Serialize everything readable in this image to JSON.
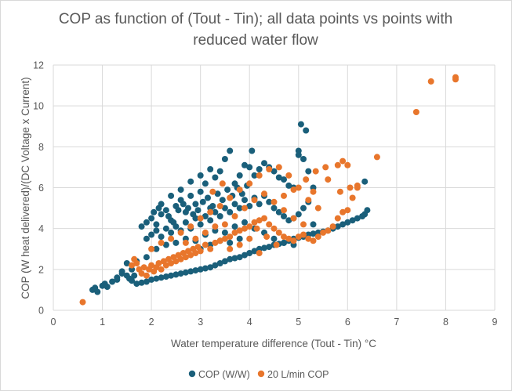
{
  "chart_data": {
    "type": "scatter",
    "title_lines": [
      "COP as function of (Tout - Tin); all data points vs points with",
      "reduced water flow"
    ],
    "xlabel": "Water temperature difference (Tout - Tin) °C",
    "ylabel": "COP (W heat delivered)/(DC Voltage x Current)",
    "xlim": [
      0,
      9
    ],
    "ylim": [
      0,
      12
    ],
    "x_ticks": [
      "0",
      "1",
      "2",
      "3",
      "4",
      "5",
      "6",
      "7",
      "8",
      "9"
    ],
    "y_ticks": [
      "0",
      "2",
      "4",
      "6",
      "8",
      "10",
      "12"
    ],
    "grid": true,
    "legend_position": "bottom",
    "series": [
      {
        "name": "COP (W/W)",
        "color": "#1a5f7a",
        "points": [
          [
            0.8,
            1.0
          ],
          [
            0.85,
            1.1
          ],
          [
            0.9,
            0.9
          ],
          [
            1.0,
            1.2
          ],
          [
            1.05,
            1.3
          ],
          [
            1.1,
            1.15
          ],
          [
            1.2,
            1.4
          ],
          [
            1.3,
            1.6
          ],
          [
            1.4,
            1.8
          ],
          [
            1.5,
            1.7
          ],
          [
            1.6,
            1.45
          ],
          [
            1.7,
            1.3
          ],
          [
            1.8,
            1.35
          ],
          [
            1.9,
            1.4
          ],
          [
            2.0,
            1.5
          ],
          [
            2.1,
            1.55
          ],
          [
            2.2,
            1.6
          ],
          [
            2.3,
            1.65
          ],
          [
            2.4,
            1.7
          ],
          [
            2.5,
            1.75
          ],
          [
            2.6,
            1.8
          ],
          [
            2.7,
            1.85
          ],
          [
            2.8,
            1.9
          ],
          [
            2.9,
            1.95
          ],
          [
            3.0,
            2.0
          ],
          [
            3.1,
            2.05
          ],
          [
            3.2,
            2.1
          ],
          [
            3.3,
            2.2
          ],
          [
            3.4,
            2.3
          ],
          [
            3.5,
            2.4
          ],
          [
            3.6,
            2.5
          ],
          [
            3.7,
            2.55
          ],
          [
            3.8,
            2.6
          ],
          [
            3.9,
            2.7
          ],
          [
            4.0,
            2.8
          ],
          [
            4.1,
            2.9
          ],
          [
            4.2,
            3.0
          ],
          [
            4.3,
            3.05
          ],
          [
            4.4,
            3.1
          ],
          [
            4.5,
            3.2
          ],
          [
            4.6,
            3.25
          ],
          [
            4.7,
            3.3
          ],
          [
            4.8,
            3.4
          ],
          [
            4.9,
            3.5
          ],
          [
            5.0,
            3.55
          ],
          [
            5.1,
            3.6
          ],
          [
            5.2,
            3.7
          ],
          [
            5.3,
            3.75
          ],
          [
            5.4,
            3.8
          ],
          [
            5.5,
            3.85
          ],
          [
            5.6,
            3.9
          ],
          [
            5.7,
            4.0
          ],
          [
            5.8,
            4.1
          ],
          [
            5.9,
            4.2
          ],
          [
            6.0,
            4.3
          ],
          [
            6.1,
            4.4
          ],
          [
            6.2,
            4.5
          ],
          [
            6.3,
            4.6
          ],
          [
            6.35,
            4.7
          ],
          [
            6.4,
            4.9
          ],
          [
            6.35,
            6.3
          ],
          [
            1.8,
            4.1
          ],
          [
            1.9,
            4.3
          ],
          [
            2.0,
            4.5
          ],
          [
            2.1,
            4.2
          ],
          [
            2.2,
            4.7
          ],
          [
            2.3,
            4.9
          ],
          [
            2.4,
            4.4
          ],
          [
            2.5,
            5.1
          ],
          [
            2.6,
            5.4
          ],
          [
            2.7,
            4.8
          ],
          [
            2.8,
            5.6
          ],
          [
            2.9,
            5.2
          ],
          [
            3.0,
            5.8
          ],
          [
            3.1,
            6.2
          ],
          [
            3.2,
            5.0
          ],
          [
            3.3,
            6.5
          ],
          [
            3.4,
            6.8
          ],
          [
            3.5,
            7.4
          ],
          [
            3.6,
            7.8
          ],
          [
            3.7,
            6.2
          ],
          [
            3.8,
            6.6
          ],
          [
            3.9,
            7.1
          ],
          [
            4.0,
            7.0
          ],
          [
            4.1,
            6.6
          ],
          [
            4.2,
            6.9
          ],
          [
            4.3,
            7.2
          ],
          [
            4.4,
            7.0
          ],
          [
            4.5,
            6.8
          ],
          [
            4.6,
            6.5
          ],
          [
            4.7,
            6.4
          ],
          [
            4.8,
            6.1
          ],
          [
            4.9,
            6.0
          ],
          [
            5.0,
            7.6
          ],
          [
            5.1,
            7.4
          ],
          [
            5.05,
            9.1
          ],
          [
            5.15,
            8.8
          ],
          [
            5.0,
            7.8
          ],
          [
            5.2,
            6.8
          ],
          [
            5.3,
            6.0
          ],
          [
            4.05,
            7.8
          ],
          [
            1.9,
            3.5
          ],
          [
            2.0,
            3.7
          ],
          [
            2.1,
            3.9
          ],
          [
            2.2,
            3.6
          ],
          [
            2.3,
            4.0
          ],
          [
            2.4,
            3.8
          ],
          [
            2.5,
            4.1
          ],
          [
            2.6,
            3.9
          ],
          [
            2.7,
            4.3
          ],
          [
            2.8,
            4.0
          ],
          [
            2.9,
            4.5
          ],
          [
            3.0,
            4.2
          ],
          [
            3.1,
            4.6
          ],
          [
            3.2,
            4.4
          ],
          [
            3.3,
            4.8
          ],
          [
            3.4,
            4.6
          ],
          [
            3.5,
            5.0
          ],
          [
            3.6,
            4.8
          ],
          [
            3.7,
            5.2
          ],
          [
            3.8,
            5.0
          ],
          [
            3.9,
            5.4
          ],
          [
            4.0,
            5.1
          ],
          [
            4.1,
            5.5
          ],
          [
            4.2,
            5.2
          ],
          [
            4.3,
            5.6
          ],
          [
            4.4,
            5.3
          ],
          [
            4.5,
            5.0
          ],
          [
            4.6,
            4.8
          ],
          [
            4.7,
            4.6
          ],
          [
            4.8,
            4.4
          ],
          [
            4.9,
            4.5
          ],
          [
            5.0,
            4.7
          ],
          [
            5.1,
            5.0
          ],
          [
            5.2,
            5.3
          ],
          [
            5.3,
            4.2
          ],
          [
            2.2,
            5.2
          ],
          [
            2.4,
            5.6
          ],
          [
            2.6,
            5.9
          ],
          [
            2.8,
            6.3
          ],
          [
            3.0,
            6.6
          ],
          [
            3.2,
            6.9
          ],
          [
            2.5,
            3.3
          ],
          [
            2.7,
            3.5
          ],
          [
            2.9,
            3.4
          ],
          [
            3.1,
            3.7
          ],
          [
            3.3,
            3.9
          ],
          [
            3.5,
            3.8
          ],
          [
            3.7,
            4.1
          ],
          [
            3.9,
            4.3
          ],
          [
            4.1,
            4.0
          ],
          [
            4.3,
            3.8
          ],
          [
            4.5,
            3.5
          ],
          [
            4.7,
            3.3
          ],
          [
            4.9,
            3.2
          ],
          [
            3.0,
            3.0
          ],
          [
            3.2,
            3.2
          ],
          [
            3.4,
            3.4
          ],
          [
            3.6,
            3.3
          ],
          [
            3.8,
            3.5
          ],
          [
            2.3,
            3.2
          ],
          [
            2.1,
            3.0
          ],
          [
            1.9,
            2.6
          ],
          [
            1.7,
            2.4
          ],
          [
            1.5,
            2.3
          ],
          [
            1.6,
            2.0
          ],
          [
            1.4,
            1.9
          ],
          [
            1.3,
            1.5
          ],
          [
            1.55,
            1.55
          ],
          [
            1.65,
            1.7
          ],
          [
            2.05,
            4.8
          ],
          [
            2.15,
            5.0
          ],
          [
            2.35,
            4.6
          ],
          [
            2.45,
            4.3
          ],
          [
            2.55,
            4.9
          ],
          [
            2.65,
            5.2
          ],
          [
            2.75,
            5.0
          ],
          [
            2.85,
            4.7
          ],
          [
            2.95,
            4.9
          ],
          [
            3.05,
            5.3
          ],
          [
            3.15,
            5.5
          ],
          [
            3.25,
            5.1
          ],
          [
            3.35,
            5.7
          ],
          [
            3.45,
            5.4
          ],
          [
            3.55,
            5.9
          ],
          [
            3.65,
            5.6
          ],
          [
            3.75,
            6.0
          ],
          [
            3.85,
            5.7
          ],
          [
            3.95,
            6.1
          ]
        ]
      },
      {
        "name": "20 L/min COP",
        "color": "#e8762c",
        "points": [
          [
            0.6,
            0.4
          ],
          [
            1.6,
            2.2
          ],
          [
            1.65,
            2.5
          ],
          [
            1.7,
            2.3
          ],
          [
            1.75,
            2.0
          ],
          [
            1.8,
            1.8
          ],
          [
            1.85,
            2.1
          ],
          [
            1.9,
            1.7
          ],
          [
            1.95,
            2.0
          ],
          [
            2.0,
            2.2
          ],
          [
            2.05,
            1.9
          ],
          [
            2.1,
            2.1
          ],
          [
            2.15,
            2.3
          ],
          [
            2.2,
            2.0
          ],
          [
            2.25,
            2.4
          ],
          [
            2.3,
            2.2
          ],
          [
            2.35,
            2.5
          ],
          [
            2.4,
            2.3
          ],
          [
            2.45,
            2.6
          ],
          [
            2.5,
            2.4
          ],
          [
            2.55,
            2.7
          ],
          [
            2.6,
            2.5
          ],
          [
            2.65,
            2.8
          ],
          [
            2.7,
            2.6
          ],
          [
            2.75,
            2.9
          ],
          [
            2.8,
            2.7
          ],
          [
            2.85,
            3.0
          ],
          [
            2.9,
            2.8
          ],
          [
            2.95,
            3.1
          ],
          [
            3.0,
            2.9
          ],
          [
            3.1,
            3.2
          ],
          [
            3.2,
            3.0
          ],
          [
            3.3,
            3.3
          ],
          [
            3.4,
            3.4
          ],
          [
            3.5,
            3.5
          ],
          [
            3.6,
            3.6
          ],
          [
            3.7,
            3.8
          ],
          [
            3.8,
            3.9
          ],
          [
            3.9,
            4.0
          ],
          [
            4.0,
            4.1
          ],
          [
            4.1,
            4.3
          ],
          [
            4.2,
            4.4
          ],
          [
            4.3,
            4.5
          ],
          [
            4.4,
            4.2
          ],
          [
            4.5,
            4.0
          ],
          [
            4.6,
            3.8
          ],
          [
            4.7,
            3.6
          ],
          [
            4.8,
            3.5
          ],
          [
            4.9,
            3.4
          ],
          [
            5.0,
            3.6
          ],
          [
            5.1,
            3.7
          ],
          [
            5.2,
            3.5
          ],
          [
            5.3,
            3.4
          ],
          [
            5.4,
            3.6
          ],
          [
            5.5,
            3.8
          ],
          [
            5.6,
            3.9
          ],
          [
            5.7,
            4.1
          ],
          [
            5.8,
            4.5
          ],
          [
            5.9,
            4.8
          ],
          [
            6.0,
            4.9
          ],
          [
            6.1,
            5.5
          ],
          [
            6.2,
            6.1
          ],
          [
            6.6,
            7.5
          ],
          [
            7.4,
            9.7
          ],
          [
            7.7,
            11.2
          ],
          [
            8.2,
            11.4
          ],
          [
            8.2,
            11.3
          ],
          [
            2.0,
            3.0
          ],
          [
            2.2,
            3.3
          ],
          [
            2.4,
            3.5
          ],
          [
            2.6,
            3.8
          ],
          [
            2.8,
            4.1
          ],
          [
            3.0,
            4.5
          ],
          [
            3.2,
            4.8
          ],
          [
            3.4,
            5.1
          ],
          [
            3.6,
            5.5
          ],
          [
            3.8,
            5.9
          ],
          [
            4.0,
            6.2
          ],
          [
            4.2,
            6.6
          ],
          [
            4.4,
            6.9
          ],
          [
            4.6,
            7.0
          ],
          [
            4.8,
            6.6
          ],
          [
            5.0,
            6.0
          ],
          [
            5.2,
            5.4
          ],
          [
            5.4,
            5.0
          ],
          [
            5.6,
            6.4
          ],
          [
            5.8,
            7.1
          ],
          [
            6.0,
            7.1
          ],
          [
            5.9,
            7.3
          ],
          [
            5.55,
            7.0
          ],
          [
            5.85,
            5.8
          ],
          [
            6.05,
            6.0
          ],
          [
            6.2,
            6.0
          ],
          [
            3.5,
            4.2
          ],
          [
            3.7,
            4.6
          ],
          [
            3.9,
            5.0
          ],
          [
            4.1,
            5.4
          ],
          [
            4.3,
            5.7
          ],
          [
            4.5,
            5.3
          ],
          [
            4.7,
            4.9
          ],
          [
            4.9,
            4.5
          ],
          [
            5.1,
            4.2
          ],
          [
            5.3,
            5.8
          ],
          [
            4.15,
            4.0
          ],
          [
            4.35,
            3.6
          ],
          [
            4.55,
            3.2
          ],
          [
            4.2,
            2.8
          ],
          [
            3.6,
            3.0
          ],
          [
            3.8,
            3.2
          ],
          [
            4.0,
            3.5
          ],
          [
            2.9,
            3.5
          ],
          [
            3.1,
            3.8
          ],
          [
            3.3,
            4.1
          ],
          [
            2.7,
            3.3
          ],
          [
            4.7,
            5.6
          ],
          [
            4.9,
            5.9
          ],
          [
            5.15,
            6.4
          ],
          [
            5.35,
            6.8
          ],
          [
            3.25,
            5.8
          ],
          [
            3.45,
            6.2
          ]
        ]
      }
    ]
  }
}
